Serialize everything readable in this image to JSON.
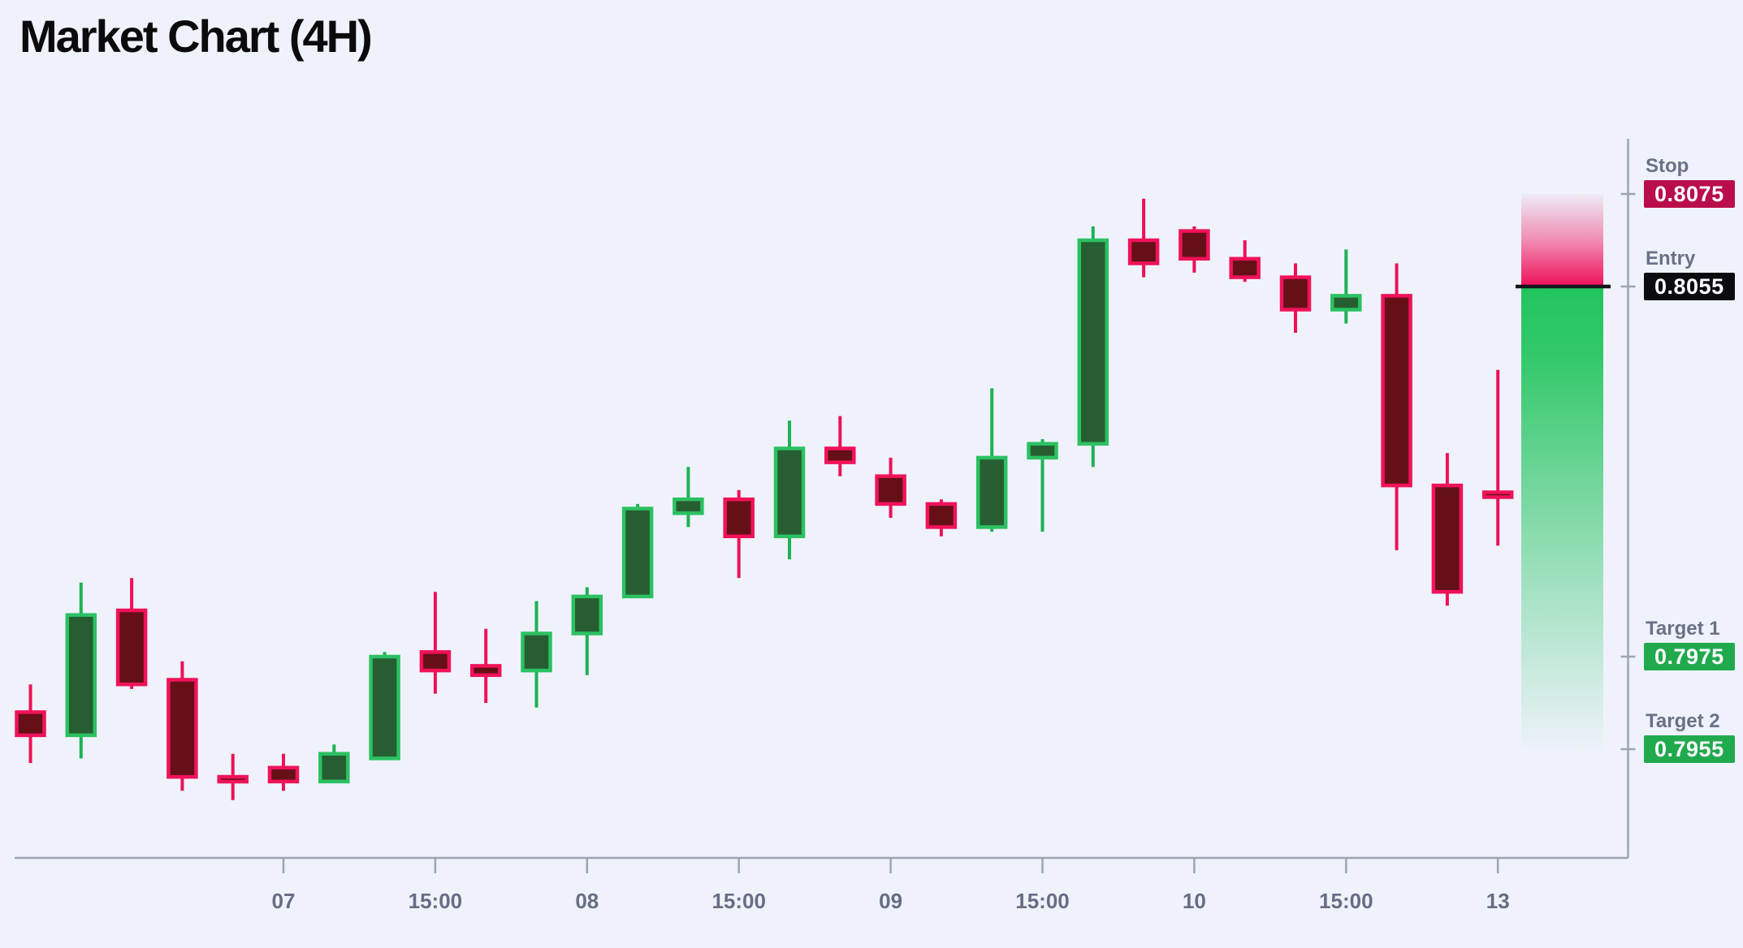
{
  "title": "Market Chart (4H)",
  "chart_data": {
    "type": "candlestick",
    "title": "Market Chart (4H)",
    "timeframe": "4H",
    "grid": "off",
    "x_ticks": [
      {
        "pos": 5,
        "label": "07"
      },
      {
        "pos": 8,
        "label": "15:00"
      },
      {
        "pos": 11,
        "label": "08"
      },
      {
        "pos": 14,
        "label": "15:00"
      },
      {
        "pos": 17,
        "label": "09"
      },
      {
        "pos": 20,
        "label": "15:00"
      },
      {
        "pos": 23,
        "label": "10"
      },
      {
        "pos": 26,
        "label": "15:00"
      },
      {
        "pos": 29,
        "label": "13"
      }
    ],
    "y_range": [
      0.7935,
      0.809
    ],
    "levels": [
      {
        "name": "Stop",
        "value": "0.8075",
        "price": 0.8075,
        "color": "#B90D4C"
      },
      {
        "name": "Entry",
        "value": "0.8055",
        "price": 0.8055,
        "color": "#0B0B10"
      },
      {
        "name": "Target 1",
        "value": "0.7975",
        "price": 0.7975,
        "color": "#21A94E"
      },
      {
        "name": "Target 2",
        "value": "0.7955",
        "price": 0.7955,
        "color": "#21A94E"
      }
    ],
    "candles": [
      {
        "o": 0.7963,
        "h": 0.7969,
        "l": 0.7952,
        "c": 0.7958
      },
      {
        "o": 0.7958,
        "h": 0.7991,
        "l": 0.7953,
        "c": 0.7984
      },
      {
        "o": 0.7985,
        "h": 0.7992,
        "l": 0.7968,
        "c": 0.7969
      },
      {
        "o": 0.797,
        "h": 0.7974,
        "l": 0.7946,
        "c": 0.7949
      },
      {
        "o": 0.7949,
        "h": 0.7954,
        "l": 0.7944,
        "c": 0.7948
      },
      {
        "o": 0.7951,
        "h": 0.7954,
        "l": 0.7946,
        "c": 0.7948
      },
      {
        "o": 0.7948,
        "h": 0.7956,
        "l": 0.7948,
        "c": 0.7954
      },
      {
        "o": 0.7953,
        "h": 0.7976,
        "l": 0.7953,
        "c": 0.7975
      },
      {
        "o": 0.7976,
        "h": 0.7989,
        "l": 0.7967,
        "c": 0.7972
      },
      {
        "o": 0.7973,
        "h": 0.7981,
        "l": 0.7965,
        "c": 0.7971
      },
      {
        "o": 0.7972,
        "h": 0.7987,
        "l": 0.7964,
        "c": 0.798
      },
      {
        "o": 0.798,
        "h": 0.799,
        "l": 0.7971,
        "c": 0.7988
      },
      {
        "o": 0.7988,
        "h": 0.8008,
        "l": 0.7988,
        "c": 0.8007
      },
      {
        "o": 0.8006,
        "h": 0.8016,
        "l": 0.8003,
        "c": 0.8009
      },
      {
        "o": 0.8009,
        "h": 0.8011,
        "l": 0.7992,
        "c": 0.8001
      },
      {
        "o": 0.8001,
        "h": 0.8026,
        "l": 0.7996,
        "c": 0.802
      },
      {
        "o": 0.802,
        "h": 0.8027,
        "l": 0.8014,
        "c": 0.8017
      },
      {
        "o": 0.8014,
        "h": 0.8018,
        "l": 0.8005,
        "c": 0.8008
      },
      {
        "o": 0.8008,
        "h": 0.8009,
        "l": 0.8001,
        "c": 0.8003
      },
      {
        "o": 0.8003,
        "h": 0.8033,
        "l": 0.8002,
        "c": 0.8018
      },
      {
        "o": 0.8018,
        "h": 0.8022,
        "l": 0.8002,
        "c": 0.8021
      },
      {
        "o": 0.8021,
        "h": 0.8068,
        "l": 0.8016,
        "c": 0.8065
      },
      {
        "o": 0.8065,
        "h": 0.8074,
        "l": 0.8057,
        "c": 0.806
      },
      {
        "o": 0.8067,
        "h": 0.8068,
        "l": 0.8058,
        "c": 0.8061
      },
      {
        "o": 0.8061,
        "h": 0.8065,
        "l": 0.8056,
        "c": 0.8057
      },
      {
        "o": 0.8057,
        "h": 0.806,
        "l": 0.8045,
        "c": 0.805
      },
      {
        "o": 0.805,
        "h": 0.8063,
        "l": 0.8047,
        "c": 0.8053
      },
      {
        "o": 0.8053,
        "h": 0.806,
        "l": 0.7998,
        "c": 0.8012
      },
      {
        "o": 0.8012,
        "h": 0.8019,
        "l": 0.7986,
        "c": 0.7989
      },
      {
        "o": 0.801,
        "h": 0.8037,
        "l": 0.7999,
        "c": 0.801
      }
    ],
    "colors": {
      "background": "#EFF2FB",
      "bull_body": "#265E32",
      "bull_border": "#2BC162",
      "bull_wick": "#1EB254",
      "bear_body": "#651016",
      "bear_border": "#F1125A",
      "bear_wick": "#EE1157",
      "axis": "#9EA4B2",
      "tick_label": "#676D83",
      "entry_line": "#15151B",
      "risk_zone": "#F0105A",
      "reward_zone": "#22C55E"
    }
  }
}
